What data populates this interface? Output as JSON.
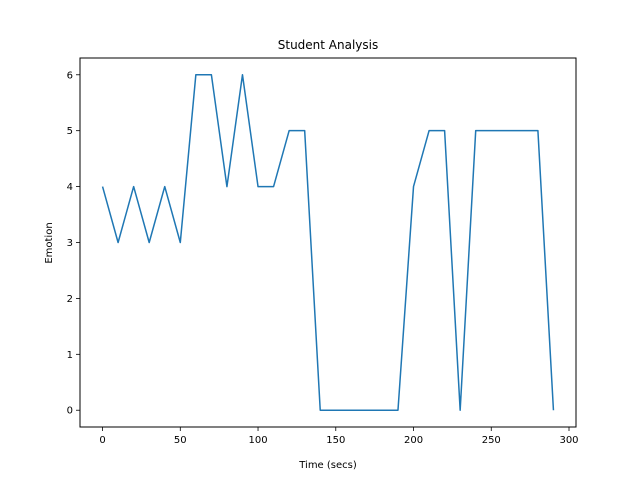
{
  "chart_data": {
    "type": "line",
    "title": "Student Analysis",
    "xlabel": "Time (secs)",
    "ylabel": "Emotion",
    "xlim": [
      -14.5,
      304.5
    ],
    "ylim": [
      -0.3,
      6.3
    ],
    "xticks": [
      0,
      50,
      100,
      150,
      200,
      250,
      300
    ],
    "yticks": [
      0,
      1,
      2,
      3,
      4,
      5,
      6
    ],
    "grid": false,
    "series": [
      {
        "color": "#1f77b4",
        "x": [
          0,
          10,
          20,
          30,
          40,
          50,
          60,
          70,
          80,
          90,
          100,
          110,
          120,
          130,
          140,
          150,
          160,
          170,
          180,
          190,
          200,
          210,
          220,
          230,
          240,
          250,
          260,
          270,
          280,
          290
        ],
        "y": [
          4,
          3,
          4,
          3,
          4,
          3,
          6,
          6,
          4,
          6,
          4,
          4,
          5,
          5,
          0,
          0,
          0,
          0,
          0,
          0,
          4,
          5,
          5,
          0,
          5,
          5,
          5,
          5,
          5,
          0
        ]
      }
    ]
  }
}
